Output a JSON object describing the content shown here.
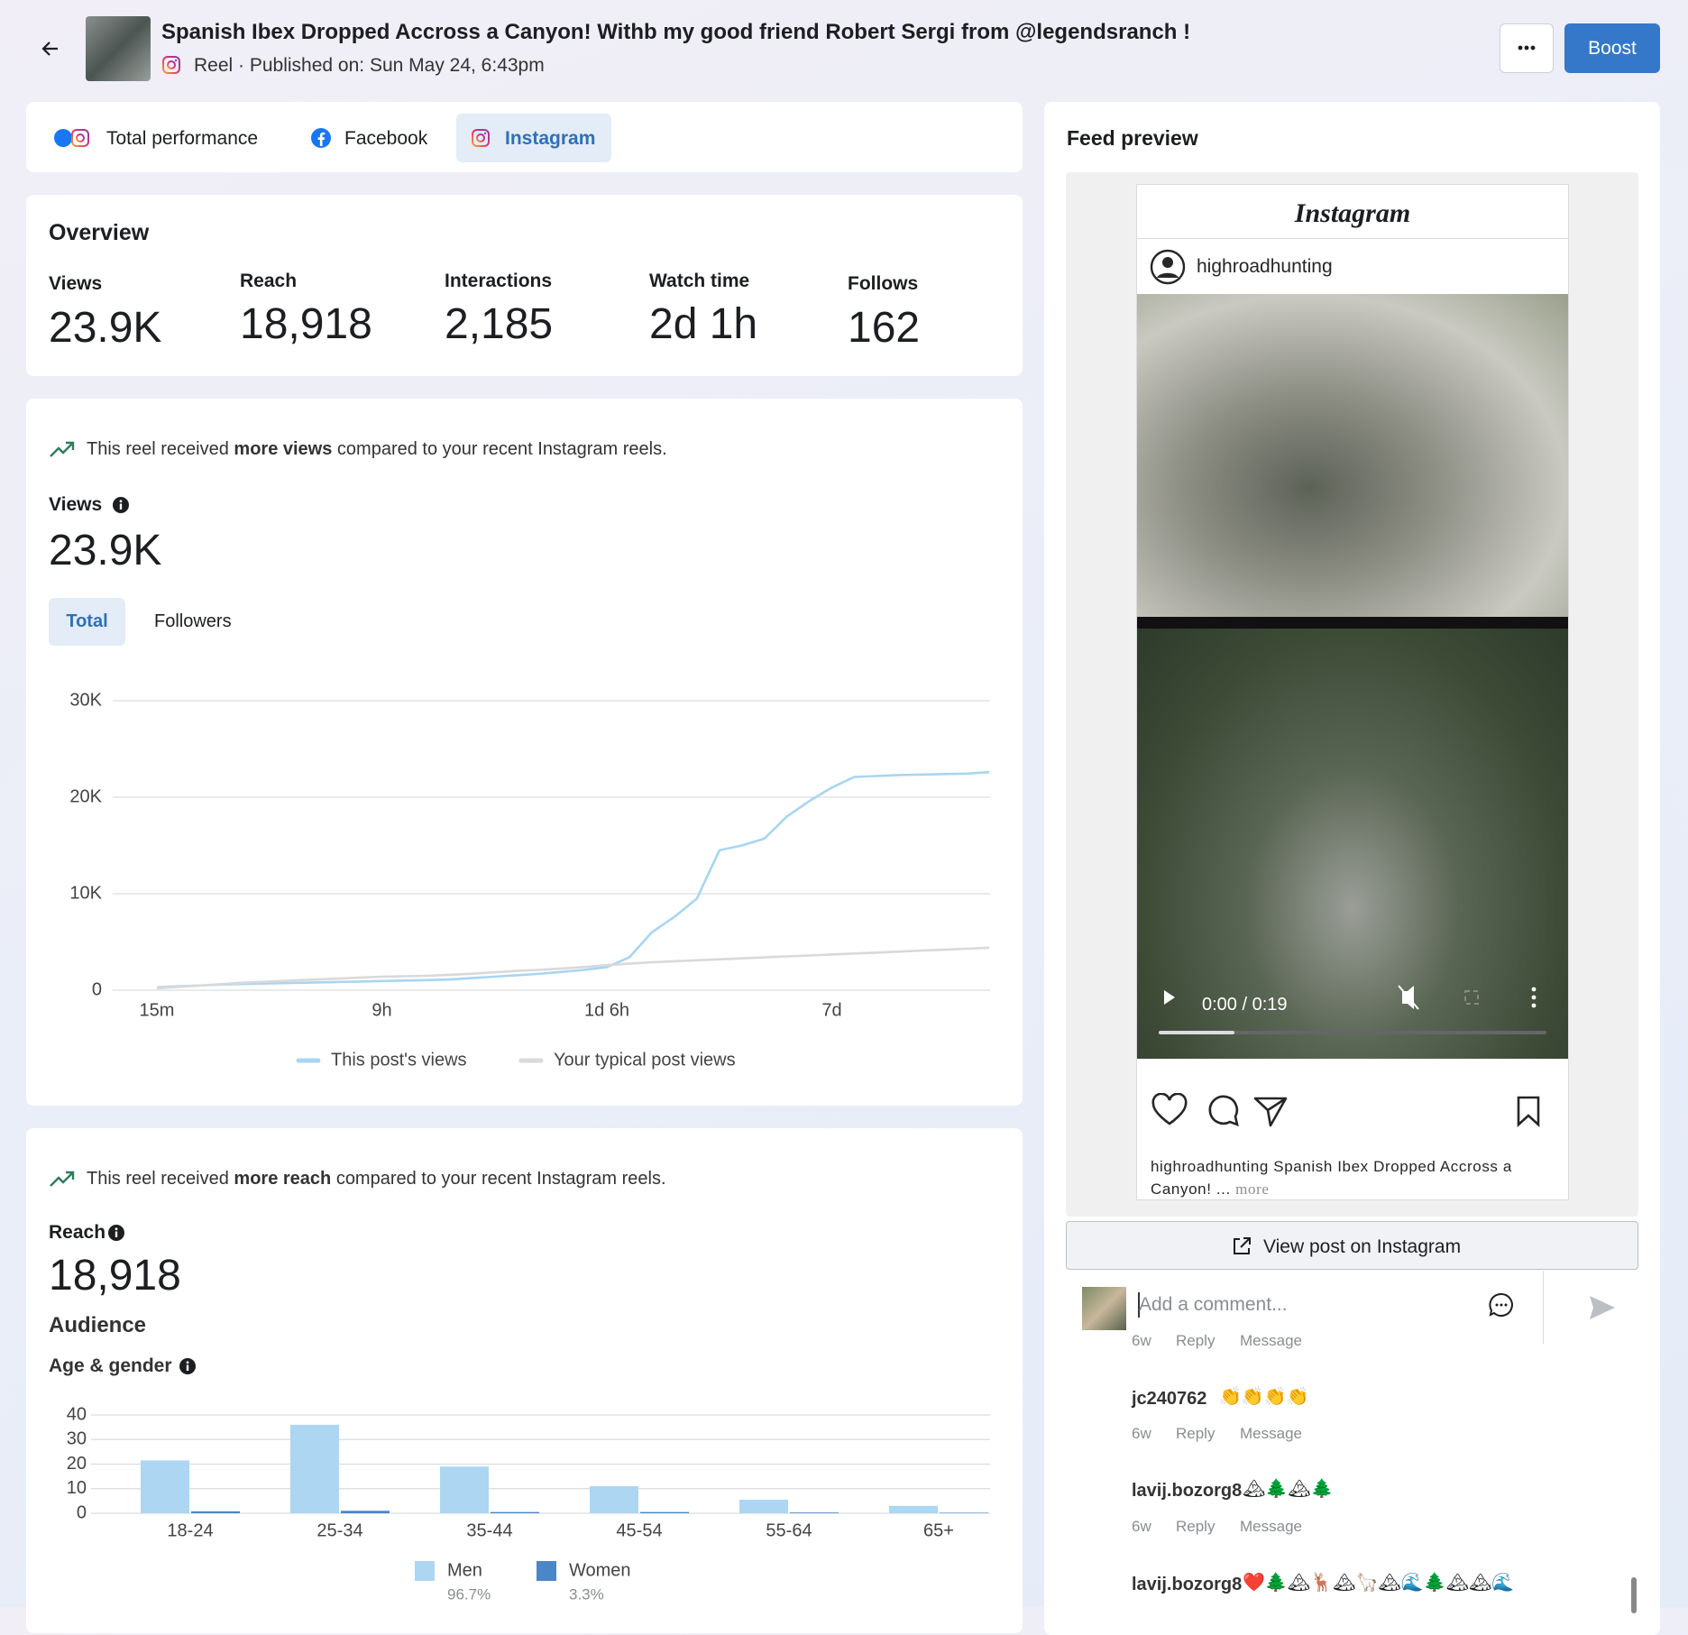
{
  "header": {
    "title": "Spanish Ibex Dropped Accross a Canyon! Withb my good friend Robert Sergi from @legendsranch !",
    "subtitle": "Reel · Published on: Sun May 24, 6:43pm",
    "boost": "Boost"
  },
  "tabs": [
    "Total performance",
    "Facebook",
    "Instagram"
  ],
  "overview": {
    "title": "Overview",
    "metrics": [
      {
        "label": "Views",
        "value": "23.9K"
      },
      {
        "label": "Reach",
        "value": "18,918"
      },
      {
        "label": "Interactions",
        "value": "2,185"
      },
      {
        "label": "Watch time",
        "value": "2d 1h"
      },
      {
        "label": "Follows",
        "value": "162"
      }
    ]
  },
  "views_panel": {
    "insight_pre": "This reel received",
    "insight_bold": "more views",
    "insight_post": "compared to your recent Instagram reels.",
    "label": "Views",
    "value": "23.9K",
    "toggles": [
      "Total",
      "Followers"
    ]
  },
  "reach_panel": {
    "insight_pre": "This reel received",
    "insight_bold": "more reach",
    "insight_post": "compared to your recent Instagram reels.",
    "label": "Reach",
    "value": "18,918",
    "audience": "Audience",
    "age_gender": "Age & gender"
  },
  "chart_data": [
    {
      "type": "line",
      "categories": [
        "15m",
        null,
        null,
        null,
        null,
        null,
        null,
        null,
        null,
        null,
        "9h",
        null,
        null,
        null,
        null,
        null,
        null,
        null,
        null,
        null,
        "1d 6h",
        null,
        null,
        null,
        null,
        null,
        null,
        null,
        null,
        null,
        "7d",
        null,
        null,
        null,
        null,
        null,
        null,
        null
      ],
      "series": [
        {
          "name": "This post's views",
          "color": "#a8d5f2",
          "values": [
            300,
            400,
            500,
            600,
            650,
            700,
            750,
            800,
            850,
            900,
            950,
            1000,
            1050,
            1100,
            1250,
            1400,
            1550,
            1700,
            1900,
            2100,
            2400,
            3400,
            6000,
            7600,
            9500,
            14500,
            15000,
            15700,
            18000,
            19600,
            21000,
            22100,
            22200,
            22300,
            22350,
            22400,
            22450,
            22600
          ]
        },
        {
          "name": "Your typical post views",
          "color": "#d9d9d9",
          "values": [
            200,
            350,
            500,
            650,
            800,
            900,
            1000,
            1100,
            1200,
            1300,
            1400,
            1450,
            1500,
            1600,
            1700,
            1850,
            2000,
            2100,
            2250,
            2400,
            2600,
            2750,
            2900,
            3000,
            3100,
            3200,
            3300,
            3400,
            3500,
            3600,
            3700,
            3800,
            3900,
            4000,
            4100,
            4200,
            4300,
            4400
          ]
        }
      ],
      "ylim": [
        0,
        30000
      ],
      "yticks": [
        0,
        {
          "value": 10000,
          "label": "10K"
        },
        {
          "value": 20000,
          "label": "20K"
        },
        {
          "value": 30000,
          "label": "30K"
        }
      ],
      "grid": true,
      "legend": "bottom"
    },
    {
      "type": "bar",
      "categories": [
        "18-24",
        "25-34",
        "35-44",
        "45-54",
        "55-64",
        "65+"
      ],
      "series": [
        {
          "name": "Men",
          "legend_note": "96.7%",
          "color": "#acd6f2",
          "values": [
            21.5,
            36,
            19,
            11,
            5.5,
            3
          ]
        },
        {
          "name": "Women",
          "legend_note": "3.3%",
          "color": "#4a86c8",
          "values": [
            0.8,
            1,
            0.5,
            0.5,
            0.3,
            0.2
          ]
        }
      ],
      "ylim": [
        0,
        40
      ],
      "yticks": [
        0,
        10,
        20,
        30,
        40
      ],
      "grid": true,
      "legend": "bottom"
    }
  ],
  "feed_preview": {
    "title": "Feed preview",
    "brand": "Instagram",
    "username": "highroadhunting",
    "video_time": "0:00 / 0:19",
    "caption": "highroadhunting Spanish Ibex Dropped Accross a",
    "caption_2": "Canyon! ...",
    "more": "more",
    "view_button": "View post on Instagram",
    "comment_placeholder": "Add a comment...",
    "comments": [
      {
        "time": "6w",
        "reply": "Reply",
        "message": "Message"
      },
      {
        "user": "jc240762",
        "text": "👏👏👏👏",
        "time": "6w",
        "reply": "Reply",
        "message": "Message"
      },
      {
        "user": "lavij.bozorg8",
        "text": "🏔🌲🏔🌲",
        "time": "6w",
        "reply": "Reply",
        "message": "Message"
      },
      {
        "user": "lavij.bozorg8",
        "text": "❤️🌲🏔🦌🏔🦙🏔🌊🌲🏔🏔🌊"
      }
    ]
  }
}
